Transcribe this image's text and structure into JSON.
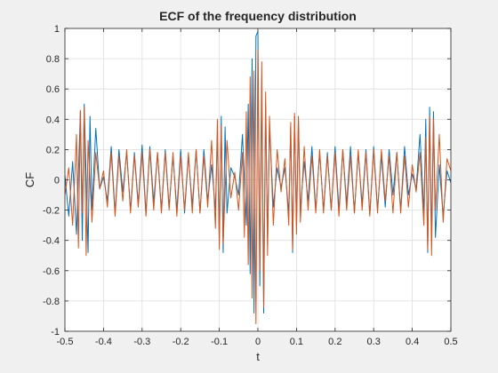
{
  "chart_data": {
    "type": "line",
    "title": "ECF of the frequency distribution",
    "xlabel": "t",
    "ylabel": "CF",
    "xlim": [
      -0.5,
      0.5
    ],
    "ylim": [
      -1,
      1
    ],
    "xticks": [
      -0.5,
      -0.4,
      -0.3,
      -0.2,
      -0.1,
      0,
      0.1,
      0.2,
      0.3,
      0.4,
      0.5
    ],
    "xtick_labels": [
      "-0.5",
      "-0.4",
      "-0.3",
      "-0.2",
      "-0.1",
      "0",
      "0.1",
      "0.2",
      "0.3",
      "0.4",
      "0.5"
    ],
    "yticks": [
      -1,
      -0.8,
      -0.6,
      -0.4,
      -0.2,
      0,
      0.2,
      0.4,
      0.6,
      0.8,
      1
    ],
    "ytick_labels": [
      "-1",
      "-0.8",
      "-0.6",
      "-0.4",
      "-0.2",
      "0",
      "0.2",
      "0.4",
      "0.6",
      "0.8",
      "1"
    ],
    "grid": true,
    "legend": "none",
    "series": [
      {
        "color": "#0072BD",
        "points": [
          [
            -0.5,
            0.03
          ],
          [
            -0.49,
            -0.24
          ],
          [
            -0.48,
            0.12
          ],
          [
            -0.47,
            -0.36
          ],
          [
            -0.46,
            0.45
          ],
          [
            -0.455,
            -0.4
          ],
          [
            -0.45,
            0.5
          ],
          [
            -0.44,
            -0.48
          ],
          [
            -0.435,
            0.42
          ],
          [
            -0.43,
            -0.2
          ],
          [
            -0.42,
            0.34
          ],
          [
            -0.41,
            -0.06
          ],
          [
            -0.4,
            0.02
          ],
          [
            -0.39,
            -0.14
          ],
          [
            -0.38,
            0.22
          ],
          [
            -0.37,
            -0.22
          ],
          [
            -0.36,
            0.2
          ],
          [
            -0.35,
            -0.08
          ],
          [
            -0.34,
            0.18
          ],
          [
            -0.33,
            -0.2
          ],
          [
            -0.32,
            0.18
          ],
          [
            -0.31,
            -0.16
          ],
          [
            -0.3,
            0.23
          ],
          [
            -0.29,
            -0.22
          ],
          [
            -0.28,
            0.22
          ],
          [
            -0.27,
            -0.15
          ],
          [
            -0.26,
            0.18
          ],
          [
            -0.25,
            -0.2
          ],
          [
            -0.24,
            0.2
          ],
          [
            -0.23,
            -0.18
          ],
          [
            -0.22,
            0.16
          ],
          [
            -0.21,
            -0.2
          ],
          [
            -0.2,
            0.2
          ],
          [
            -0.19,
            -0.22
          ],
          [
            -0.18,
            0.16
          ],
          [
            -0.17,
            -0.17
          ],
          [
            -0.16,
            0.2
          ],
          [
            -0.15,
            -0.22
          ],
          [
            -0.14,
            0.2
          ],
          [
            -0.13,
            -0.14
          ],
          [
            -0.12,
            0.1
          ],
          [
            -0.11,
            -0.2
          ],
          [
            -0.105,
            0.3
          ],
          [
            -0.1,
            -0.4
          ],
          [
            -0.095,
            0.42
          ],
          [
            -0.09,
            -0.48
          ],
          [
            -0.085,
            0.35
          ],
          [
            -0.08,
            -0.22
          ],
          [
            -0.07,
            0.08
          ],
          [
            -0.06,
            0.02
          ],
          [
            -0.05,
            -0.1
          ],
          [
            -0.04,
            0.3
          ],
          [
            -0.03,
            -0.3
          ],
          [
            -0.025,
            0.5
          ],
          [
            -0.02,
            -0.62
          ],
          [
            -0.015,
            0.8
          ],
          [
            -0.01,
            -0.88
          ],
          [
            -0.005,
            0.95
          ],
          [
            0,
            0.98
          ],
          [
            0.005,
            -0.7
          ],
          [
            0.01,
            0.62
          ],
          [
            0.015,
            -0.88
          ],
          [
            0.02,
            0.5
          ],
          [
            0.025,
            -0.42
          ],
          [
            0.03,
            0.35
          ],
          [
            0.04,
            -0.18
          ],
          [
            0.05,
            0.08
          ],
          [
            0.06,
            -0.05
          ],
          [
            0.07,
            0.08
          ],
          [
            0.08,
            -0.22
          ],
          [
            0.085,
            0.35
          ],
          [
            0.09,
            -0.48
          ],
          [
            0.095,
            0.42
          ],
          [
            0.1,
            -0.3
          ],
          [
            0.105,
            0.4
          ],
          [
            0.11,
            -0.2
          ],
          [
            0.12,
            0.12
          ],
          [
            0.13,
            -0.14
          ],
          [
            0.14,
            0.22
          ],
          [
            0.15,
            -0.2
          ],
          [
            0.16,
            0.18
          ],
          [
            0.17,
            -0.2
          ],
          [
            0.18,
            0.18
          ],
          [
            0.19,
            -0.2
          ],
          [
            0.2,
            0.22
          ],
          [
            0.21,
            -0.2
          ],
          [
            0.22,
            0.2
          ],
          [
            0.23,
            -0.16
          ],
          [
            0.24,
            0.22
          ],
          [
            0.25,
            -0.22
          ],
          [
            0.26,
            0.18
          ],
          [
            0.27,
            -0.16
          ],
          [
            0.28,
            0.2
          ],
          [
            0.29,
            -0.23
          ],
          [
            0.3,
            0.22
          ],
          [
            0.31,
            -0.2
          ],
          [
            0.32,
            0.16
          ],
          [
            0.33,
            -0.18
          ],
          [
            0.34,
            0.2
          ],
          [
            0.35,
            -0.1
          ],
          [
            0.36,
            0.18
          ],
          [
            0.37,
            -0.2
          ],
          [
            0.38,
            0.22
          ],
          [
            0.39,
            -0.1
          ],
          [
            0.4,
            0.04
          ],
          [
            0.41,
            -0.06
          ],
          [
            0.42,
            0.3
          ],
          [
            0.43,
            -0.22
          ],
          [
            0.435,
            0.4
          ],
          [
            0.44,
            -0.48
          ],
          [
            0.445,
            0.48
          ],
          [
            0.45,
            -0.4
          ],
          [
            0.455,
            0.45
          ],
          [
            0.46,
            -0.38
          ],
          [
            0.47,
            0.1
          ],
          [
            0.48,
            -0.24
          ],
          [
            0.49,
            0.06
          ],
          [
            0.5,
            -0.02
          ]
        ]
      },
      {
        "color": "#D95319",
        "points": [
          [
            -0.5,
            -0.1
          ],
          [
            -0.49,
            0.08
          ],
          [
            -0.48,
            -0.3
          ],
          [
            -0.47,
            0.3
          ],
          [
            -0.465,
            -0.45
          ],
          [
            -0.46,
            0.46
          ],
          [
            -0.455,
            -0.22
          ],
          [
            -0.45,
            0.48
          ],
          [
            -0.445,
            -0.5
          ],
          [
            -0.44,
            0.26
          ],
          [
            -0.43,
            -0.28
          ],
          [
            -0.42,
            0.18
          ],
          [
            -0.41,
            -0.06
          ],
          [
            -0.4,
            0.06
          ],
          [
            -0.39,
            -0.18
          ],
          [
            -0.38,
            0.18
          ],
          [
            -0.37,
            -0.24
          ],
          [
            -0.36,
            0.16
          ],
          [
            -0.35,
            -0.14
          ],
          [
            -0.34,
            0.2
          ],
          [
            -0.33,
            -0.22
          ],
          [
            -0.32,
            0.16
          ],
          [
            -0.31,
            -0.18
          ],
          [
            -0.3,
            0.18
          ],
          [
            -0.29,
            -0.24
          ],
          [
            -0.28,
            0.2
          ],
          [
            -0.27,
            -0.2
          ],
          [
            -0.26,
            0.18
          ],
          [
            -0.25,
            -0.22
          ],
          [
            -0.24,
            0.18
          ],
          [
            -0.23,
            -0.2
          ],
          [
            -0.22,
            0.18
          ],
          [
            -0.21,
            -0.24
          ],
          [
            -0.2,
            0.16
          ],
          [
            -0.19,
            -0.2
          ],
          [
            -0.18,
            0.18
          ],
          [
            -0.17,
            -0.22
          ],
          [
            -0.16,
            0.2
          ],
          [
            -0.15,
            -0.22
          ],
          [
            -0.14,
            0.16
          ],
          [
            -0.13,
            -0.18
          ],
          [
            -0.12,
            0.26
          ],
          [
            -0.11,
            -0.32
          ],
          [
            -0.105,
            0.4
          ],
          [
            -0.1,
            -0.46
          ],
          [
            -0.095,
            0.36
          ],
          [
            -0.09,
            -0.42
          ],
          [
            -0.08,
            0.26
          ],
          [
            -0.07,
            -0.12
          ],
          [
            -0.06,
            0.05
          ],
          [
            -0.05,
            -0.2
          ],
          [
            -0.04,
            0.18
          ],
          [
            -0.035,
            -0.38
          ],
          [
            -0.03,
            0.45
          ],
          [
            -0.025,
            -0.56
          ],
          [
            -0.02,
            0.68
          ],
          [
            -0.015,
            -0.78
          ],
          [
            -0.01,
            0.72
          ],
          [
            -0.005,
            -0.95
          ],
          [
            0,
            0.86
          ],
          [
            0.005,
            -0.6
          ],
          [
            0.01,
            0.78
          ],
          [
            0.015,
            -0.84
          ],
          [
            0.02,
            0.58
          ],
          [
            0.025,
            -0.5
          ],
          [
            0.03,
            0.42
          ],
          [
            0.04,
            -0.3
          ],
          [
            0.05,
            0.2
          ],
          [
            0.06,
            -0.08
          ],
          [
            0.07,
            0.14
          ],
          [
            0.08,
            -0.3
          ],
          [
            0.085,
            0.38
          ],
          [
            0.09,
            -0.46
          ],
          [
            0.095,
            0.44
          ],
          [
            0.1,
            -0.36
          ],
          [
            0.105,
            0.42
          ],
          [
            0.11,
            -0.28
          ],
          [
            0.12,
            0.22
          ],
          [
            0.13,
            -0.2
          ],
          [
            0.14,
            0.16
          ],
          [
            0.15,
            -0.22
          ],
          [
            0.16,
            0.2
          ],
          [
            0.17,
            -0.22
          ],
          [
            0.18,
            0.16
          ],
          [
            0.19,
            -0.2
          ],
          [
            0.2,
            0.18
          ],
          [
            0.21,
            -0.24
          ],
          [
            0.22,
            0.2
          ],
          [
            0.23,
            -0.2
          ],
          [
            0.24,
            0.16
          ],
          [
            0.25,
            -0.22
          ],
          [
            0.26,
            0.2
          ],
          [
            0.27,
            -0.2
          ],
          [
            0.28,
            0.18
          ],
          [
            0.29,
            -0.24
          ],
          [
            0.3,
            0.2
          ],
          [
            0.31,
            -0.22
          ],
          [
            0.32,
            0.2
          ],
          [
            0.33,
            -0.14
          ],
          [
            0.34,
            0.16
          ],
          [
            0.35,
            -0.22
          ],
          [
            0.36,
            0.18
          ],
          [
            0.37,
            -0.22
          ],
          [
            0.38,
            0.16
          ],
          [
            0.39,
            -0.18
          ],
          [
            0.4,
            0.1
          ],
          [
            0.41,
            -0.08
          ],
          [
            0.42,
            0.18
          ],
          [
            0.43,
            -0.3
          ],
          [
            0.435,
            0.28
          ],
          [
            0.44,
            -0.46
          ],
          [
            0.445,
            0.42
          ],
          [
            0.45,
            -0.5
          ],
          [
            0.455,
            0.4
          ],
          [
            0.46,
            -0.2
          ],
          [
            0.47,
            0.3
          ],
          [
            0.48,
            -0.28
          ],
          [
            0.49,
            0.14
          ],
          [
            0.5,
            0.06
          ]
        ]
      }
    ]
  }
}
